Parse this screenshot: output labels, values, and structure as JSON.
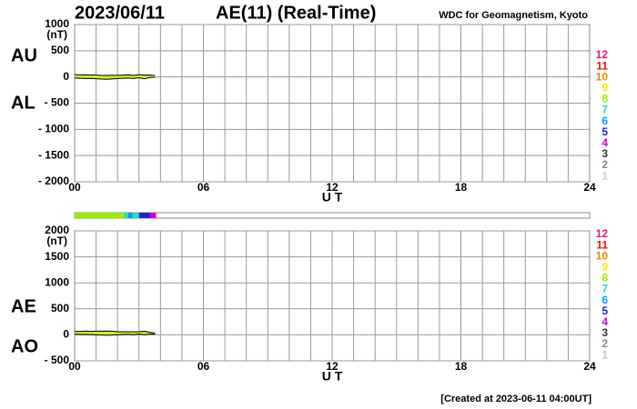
{
  "header": {
    "date": "2023/06/11",
    "title": "AE(11) (Real-Time)",
    "source": "WDC for Geomagnetism, Kyoto",
    "footer": "[Created at 2023-06-11 04:00UT]"
  },
  "chart_data": [
    {
      "type": "line",
      "xlabel": "U T",
      "yunit": "(nT)",
      "grid": true,
      "xlim": [
        0,
        24
      ],
      "xticks": [
        {
          "value": 0,
          "label": "00"
        },
        {
          "value": 6,
          "label": "06"
        },
        12,
        18,
        24
      ],
      "ylim": [
        -2000,
        1000
      ],
      "yticks": [
        1000,
        500,
        0,
        {
          "value": -500,
          "label": "- 500"
        },
        {
          "value": -1000,
          "label": "- 1000"
        },
        {
          "value": -1500,
          "label": "- 1500"
        },
        {
          "value": -2000,
          "label": "- 2000"
        }
      ],
      "x": [
        0,
        0.25,
        0.5,
        0.75,
        1,
        1.25,
        1.5,
        1.75,
        2,
        2.25,
        2.5,
        2.75,
        3,
        3.25,
        3.5,
        3.75
      ],
      "band_color": "#ccee33",
      "series": [
        {
          "name": "AU",
          "color": "#000000",
          "values": [
            45,
            40,
            42,
            38,
            35,
            30,
            28,
            32,
            30,
            35,
            40,
            30,
            45,
            35,
            38,
            30
          ]
        },
        {
          "name": "AL",
          "color": "#000000",
          "values": [
            -20,
            -25,
            -30,
            -28,
            -35,
            -40,
            -45,
            -38,
            -30,
            -25,
            -20,
            -30,
            -15,
            -35,
            -10,
            -5
          ]
        }
      ],
      "levels": [
        12,
        11,
        10,
        9,
        8,
        7,
        6,
        5,
        4,
        3,
        2,
        1
      ],
      "level_colors": [
        "#ee1177",
        "#ee1100",
        "#ee8800",
        "#eeee00",
        "#99ee00",
        "#22ddbb",
        "#0099ff",
        "#2222cc",
        "#cc00cc",
        "#333333",
        "#888888",
        "#cccccc"
      ]
    },
    {
      "type": "line",
      "xlabel": "U T",
      "yunit": "(nT)",
      "grid": true,
      "xlim": [
        0,
        24
      ],
      "xticks": [
        {
          "value": 0,
          "label": "00"
        },
        {
          "value": 6,
          "label": "06"
        },
        12,
        18,
        24
      ],
      "ylim": [
        -500,
        2000
      ],
      "yticks": [
        2000,
        1500,
        1000,
        500,
        0,
        {
          "value": -500,
          "label": "- 500"
        }
      ],
      "x": [
        0,
        0.25,
        0.5,
        0.75,
        1,
        1.25,
        1.5,
        1.75,
        2,
        2.25,
        2.5,
        2.75,
        3,
        3.25,
        3.5,
        3.75
      ],
      "band_color": "#ccee33",
      "series": [
        {
          "name": "AE",
          "color": "#000000",
          "values": [
            65,
            65,
            72,
            66,
            70,
            70,
            73,
            70,
            60,
            60,
            60,
            60,
            60,
            70,
            48,
            35
          ]
        },
        {
          "name": "AO",
          "color": "#000000",
          "values": [
            12.5,
            7.5,
            6,
            5,
            0,
            -5,
            -8.5,
            -3,
            0,
            5,
            10,
            0,
            15,
            0,
            14,
            12.5
          ]
        }
      ],
      "levels": [
        12,
        11,
        10,
        9,
        8,
        7,
        6,
        5,
        4,
        3,
        2,
        1
      ],
      "level_colors": [
        "#ee1177",
        "#ee1100",
        "#ee8800",
        "#eeee00",
        "#99ee00",
        "#22ddbb",
        "#0099ff",
        "#2222cc",
        "#cc00cc",
        "#333333",
        "#888888",
        "#cccccc"
      ]
    }
  ],
  "coverage": [
    {
      "start": 0,
      "end": 2.3,
      "color": "#99ee00"
    },
    {
      "start": 2.3,
      "end": 2.5,
      "color": "#22ddbb"
    },
    {
      "start": 2.5,
      "end": 2.7,
      "color": "#0099ff"
    },
    {
      "start": 2.7,
      "end": 3.0,
      "color": "#22ddbb"
    },
    {
      "start": 3.0,
      "end": 3.5,
      "color": "#2222cc"
    },
    {
      "start": 3.5,
      "end": 3.8,
      "color": "#cc00cc"
    }
  ]
}
